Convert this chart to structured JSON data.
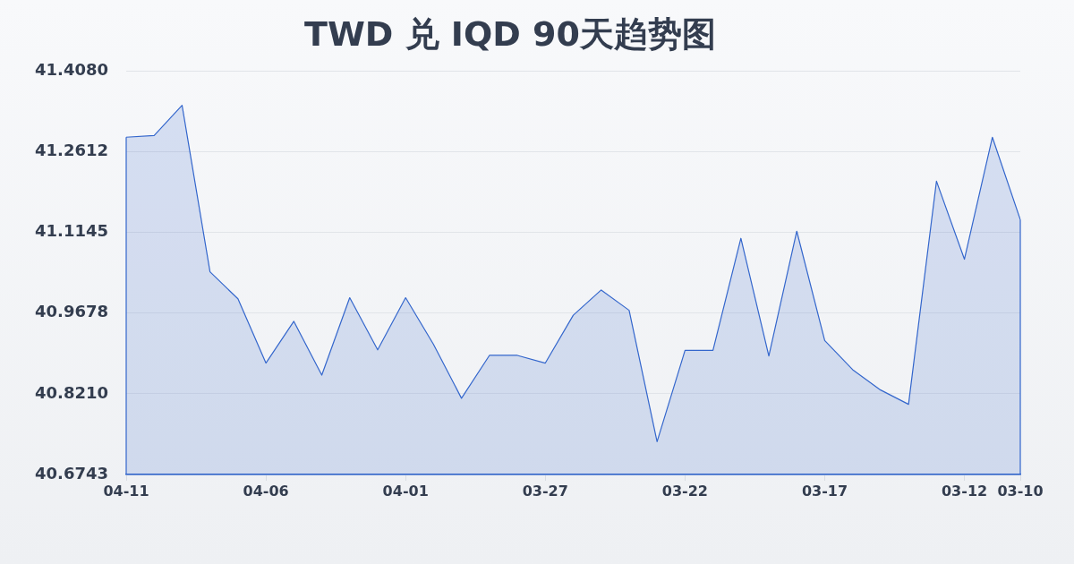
{
  "chart_data": {
    "type": "area",
    "title": "TWD 兑 IQD 90天趋势图",
    "categories": [
      "04-11",
      null,
      null,
      null,
      null,
      "04-06",
      null,
      null,
      null,
      null,
      "04-01",
      null,
      null,
      null,
      null,
      "03-27",
      null,
      null,
      null,
      null,
      "03-22",
      null,
      null,
      null,
      null,
      "03-17",
      null,
      null,
      null,
      null,
      "03-12",
      null,
      "03-10"
    ],
    "values": [
      41.288,
      41.291,
      41.346,
      41.043,
      40.994,
      40.877,
      40.953,
      40.855,
      40.996,
      40.901,
      40.996,
      40.911,
      40.813,
      40.891,
      40.891,
      40.877,
      40.964,
      41.01,
      40.973,
      40.734,
      40.9,
      40.9,
      41.104,
      40.89,
      41.117,
      40.918,
      40.865,
      40.828,
      40.802,
      41.208,
      41.066,
      41.288,
      41.138
    ],
    "color": "#3366cc",
    "ylim": [
      40.6743,
      41.408
    ],
    "yticks": [
      40.6743,
      {
        "value": 40.821,
        "label": "40.8210"
      },
      40.9678,
      41.1145,
      41.2612,
      {
        "value": 41.408,
        "label": "41.4080"
      }
    ],
    "grid": "y"
  }
}
